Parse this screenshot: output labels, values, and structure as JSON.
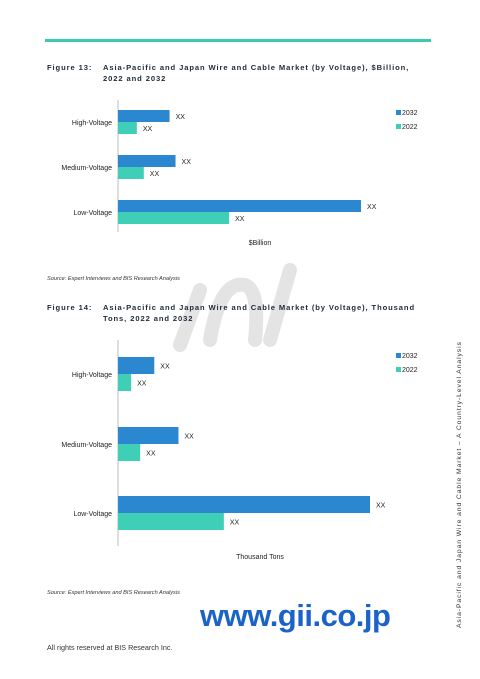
{
  "figures": [
    {
      "number": "Figure 13:",
      "title_line1": "Asia-Pacific and Japan Wire and Cable Market (by Voltage), $Billion,",
      "title_line2": "2022 and 2032",
      "source": "Source: Expert Interviews and BIS Research Analysis"
    },
    {
      "number": "Figure 14:",
      "title_line1": "Asia-Pacific and Japan Wire and Cable Market (by Voltage), Thousand",
      "title_line2": "Tons, 2022 and 2032",
      "source": "Source: Expert Interviews and BIS Research Analysis"
    }
  ],
  "chart_data": [
    {
      "type": "bar",
      "orientation": "horizontal",
      "categories": [
        "High-Voltage",
        "Medium-Voltage",
        "Low-Voltage"
      ],
      "series": [
        {
          "name": "2032",
          "values": [
            52,
            58,
            245
          ],
          "labels": [
            "XX",
            "XX",
            "XX"
          ],
          "color": "#2b87cf"
        },
        {
          "name": "2022",
          "values": [
            19,
            26,
            112
          ],
          "labels": [
            "XX",
            "XX",
            "XX"
          ],
          "color": "#3ecfb6"
        }
      ],
      "xlabel": "$Billion",
      "ylabel": "",
      "xlim": [
        0,
        250
      ],
      "grid": false,
      "legend": "top-right"
    },
    {
      "type": "bar",
      "orientation": "horizontal",
      "categories": [
        "High-Voltage",
        "Medium-Voltage",
        "Low-Voltage"
      ],
      "series": [
        {
          "name": "2032",
          "values": [
            36,
            60,
            250
          ],
          "labels": [
            "XX",
            "XX",
            "XX"
          ],
          "color": "#2b87cf"
        },
        {
          "name": "2022",
          "values": [
            13,
            22,
            105
          ],
          "labels": [
            "XX",
            "XX",
            "XX"
          ],
          "color": "#3ecfb6"
        }
      ],
      "xlabel": "Thousand Tons",
      "ylabel": "",
      "xlim": [
        0,
        250
      ],
      "grid": false,
      "legend": "top-right"
    }
  ],
  "side_text": "Asia-Pacific and Japan Wire and Cable Market – A Country-Level Analysis",
  "watermark_site": "www.gii.co.jp",
  "footer": "All rights reserved at BIS Research Inc."
}
